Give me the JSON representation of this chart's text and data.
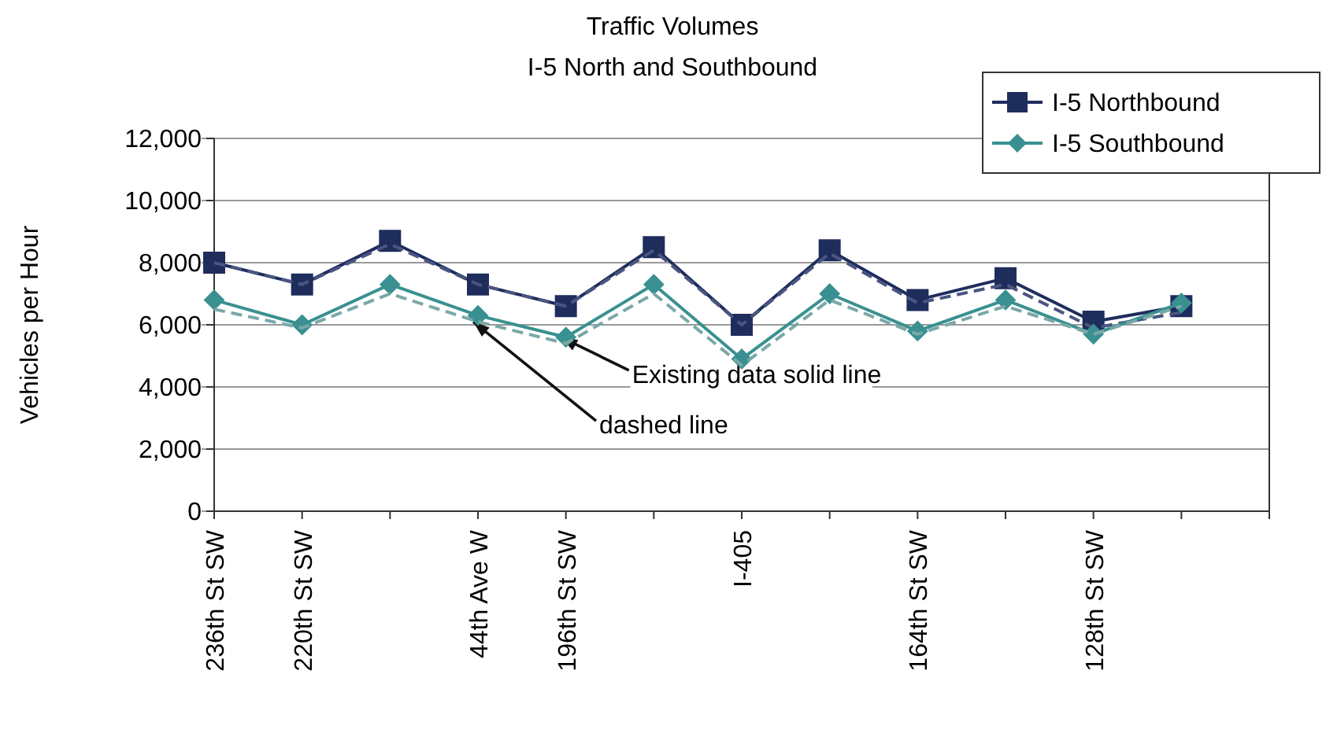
{
  "chart_data": {
    "type": "line",
    "title": "Traffic Volumes",
    "subtitle": "I-5 North and Southbound",
    "ylabel": "Vehicles per Hour",
    "categories": [
      "236th St SW",
      "220th St SW",
      null,
      "44th Ave W",
      "196th St SW",
      null,
      "I-405",
      null,
      "164th St SW",
      null,
      "128th St SW",
      null,
      null
    ],
    "series": [
      {
        "name": "I-5 Northbound",
        "color": "#1f2d5c",
        "marker": "square",
        "line_style": "solid",
        "values": [
          8000,
          7300,
          8700,
          7300,
          6600,
          8500,
          6000,
          8400,
          6800,
          7500,
          6100,
          6600,
          null
        ]
      },
      {
        "color": "#4a5580",
        "marker": "none",
        "line_style": "dashed",
        "values": [
          8000,
          7300,
          8600,
          7300,
          6600,
          8400,
          6000,
          8300,
          6700,
          7300,
          5900,
          6400,
          null
        ]
      },
      {
        "name": "I-5 Southbound",
        "color": "#3a9090",
        "marker": "diamond",
        "line_style": "solid",
        "values": [
          6800,
          6000,
          7300,
          6300,
          5600,
          7300,
          4900,
          7000,
          5800,
          6800,
          5700,
          6700,
          null
        ]
      },
      {
        "color": "#7aa8a8",
        "marker": "none",
        "line_style": "dashed",
        "values": [
          6500,
          5900,
          7000,
          6100,
          5400,
          7000,
          4700,
          6800,
          5700,
          6600,
          5700,
          6600,
          null
        ]
      }
    ],
    "ylim": [
      0,
      12000
    ],
    "yticks": [
      {
        "value": 0,
        "label": "0"
      },
      {
        "value": 2000,
        "label": "2,000"
      },
      {
        "value": 4000,
        "label": "4,000"
      },
      {
        "value": 6000,
        "label": "6,000"
      },
      {
        "value": 8000,
        "label": "8,000"
      },
      {
        "value": 10000,
        "label": "10,000"
      },
      {
        "value": 12000,
        "label": "12,000"
      }
    ],
    "grid": "y",
    "legend": "top right",
    "annotations": [
      {
        "text": "Existing data solid line",
        "x": "196th St SW",
        "y": 5600
      },
      {
        "text": "dashed line",
        "x": "44th Ave W",
        "y": 6100
      }
    ]
  }
}
